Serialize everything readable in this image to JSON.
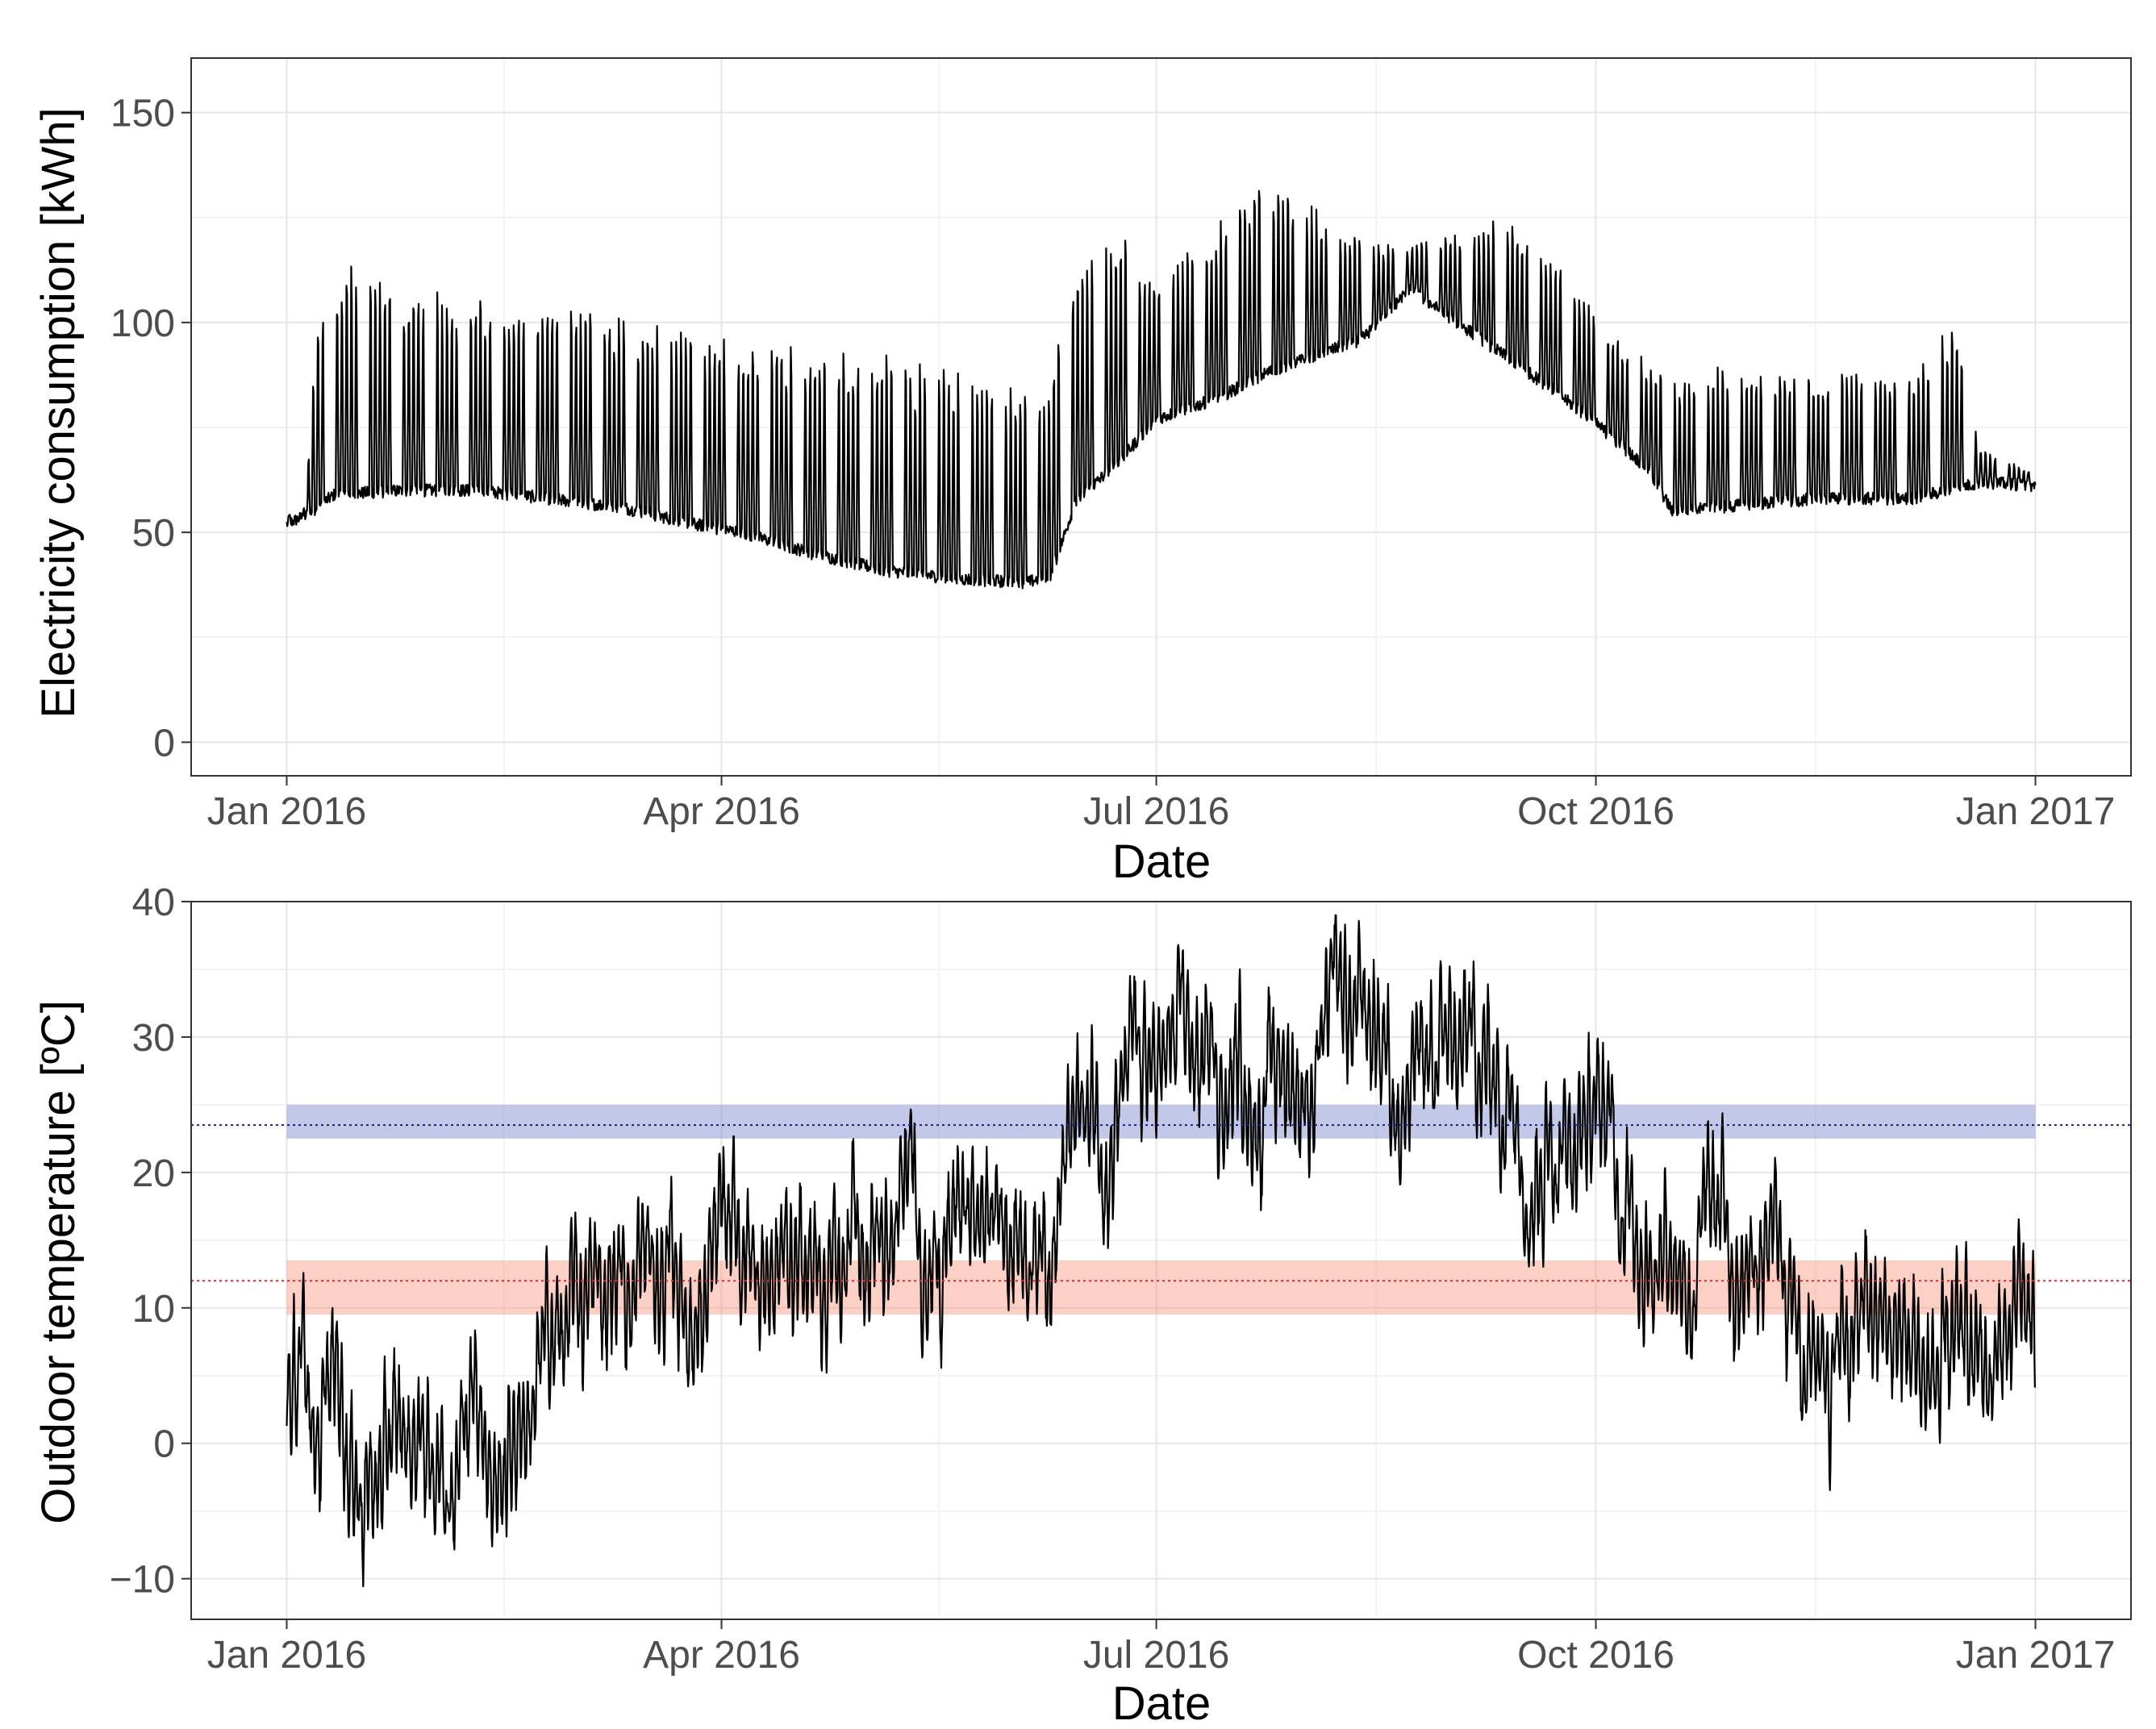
{
  "chart_data": [
    {
      "type": "line",
      "title": "",
      "xlabel": "Date",
      "ylabel": "Electricity consumption [kWh]",
      "ylim": [
        -8,
        163
      ],
      "yticks": [
        0,
        50,
        100,
        150
      ],
      "ytick_labels": [
        "0",
        "50",
        "100",
        "150"
      ],
      "xlim_days": [
        -20,
        386
      ],
      "xticks_days": [
        0,
        91,
        182,
        274,
        366
      ],
      "xtick_labels": [
        "Jan 2016",
        "Apr 2016",
        "Jul 2016",
        "Oct 2016",
        "Jan 2017"
      ],
      "grid": true,
      "line_color": "#000000",
      "description_of_series": "hourly electricity consumption, Jan 2016 - Jan 2017",
      "base_kwh": [
        [
          0,
          52
        ],
        [
          4,
          54
        ],
        [
          10,
          59
        ],
        [
          25,
          60
        ],
        [
          40,
          60
        ],
        [
          55,
          58
        ],
        [
          70,
          56
        ],
        [
          85,
          52
        ],
        [
          95,
          50
        ],
        [
          110,
          45
        ],
        [
          125,
          41
        ],
        [
          140,
          39
        ],
        [
          155,
          38
        ],
        [
          160,
          40
        ],
        [
          165,
          57
        ],
        [
          175,
          68
        ],
        [
          182,
          77
        ],
        [
          195,
          82
        ],
        [
          205,
          88
        ],
        [
          215,
          92
        ],
        [
          225,
          96
        ],
        [
          235,
          108
        ],
        [
          245,
          100
        ],
        [
          255,
          92
        ],
        [
          265,
          84
        ],
        [
          275,
          75
        ],
        [
          285,
          65
        ],
        [
          290,
          55
        ],
        [
          300,
          56
        ],
        [
          320,
          58
        ],
        [
          340,
          58
        ],
        [
          355,
          62
        ],
        [
          366,
          61
        ]
      ],
      "peak_kwh": [
        [
          0,
          54
        ],
        [
          4,
          56
        ],
        [
          6,
          98
        ],
        [
          12,
          112
        ],
        [
          25,
          106
        ],
        [
          40,
          104
        ],
        [
          55,
          102
        ],
        [
          70,
          100
        ],
        [
          85,
          96
        ],
        [
          95,
          94
        ],
        [
          110,
          92
        ],
        [
          125,
          90
        ],
        [
          140,
          86
        ],
        [
          160,
          82
        ],
        [
          163,
          112
        ],
        [
          175,
          118
        ],
        [
          182,
          110
        ],
        [
          195,
          122
        ],
        [
          205,
          132
        ],
        [
          215,
          126
        ],
        [
          225,
          118
        ],
        [
          235,
          118
        ],
        [
          245,
          120
        ],
        [
          255,
          124
        ],
        [
          265,
          116
        ],
        [
          275,
          100
        ],
        [
          285,
          90
        ],
        [
          290,
          86
        ],
        [
          300,
          88
        ],
        [
          320,
          86
        ],
        [
          340,
          88
        ],
        [
          350,
          100
        ],
        [
          354,
          70
        ],
        [
          366,
          64
        ]
      ]
    },
    {
      "type": "line",
      "title": "",
      "xlabel": "Date",
      "ylabel": "Outdoor temperature [ºC]",
      "ylim": [
        -13,
        40
      ],
      "yticks": [
        -10,
        0,
        10,
        20,
        30,
        40
      ],
      "ytick_labels": [
        "−10",
        "0",
        "10",
        "20",
        "30",
        "40"
      ],
      "xlim_days": [
        -20,
        386
      ],
      "xticks_days": [
        0,
        91,
        182,
        274,
        366
      ],
      "xtick_labels": [
        "Jan 2016",
        "Apr 2016",
        "Jul 2016",
        "Oct 2016",
        "Jan 2017"
      ],
      "grid": true,
      "line_color": "#000000",
      "description_of_series": "hourly outdoor temperature, Jan 2016 - Jan 2017",
      "temperature_trend": [
        [
          0,
          4
        ],
        [
          10,
          3
        ],
        [
          20,
          -2
        ],
        [
          30,
          1
        ],
        [
          40,
          5
        ],
        [
          45,
          -1
        ],
        [
          50,
          4
        ],
        [
          60,
          8
        ],
        [
          70,
          13
        ],
        [
          80,
          12
        ],
        [
          90,
          11
        ],
        [
          100,
          14
        ],
        [
          110,
          14
        ],
        [
          120,
          15
        ],
        [
          140,
          16
        ],
        [
          150,
          17
        ],
        [
          160,
          20
        ],
        [
          170,
          25
        ],
        [
          180,
          25
        ],
        [
          190,
          27
        ],
        [
          200,
          28
        ],
        [
          210,
          29
        ],
        [
          220,
          29
        ],
        [
          230,
          31
        ],
        [
          240,
          27
        ],
        [
          250,
          27
        ],
        [
          260,
          28
        ],
        [
          270,
          25
        ],
        [
          280,
          21
        ],
        [
          290,
          17
        ],
        [
          300,
          15
        ],
        [
          310,
          13
        ],
        [
          320,
          10
        ],
        [
          330,
          8
        ],
        [
          340,
          6
        ],
        [
          350,
          2
        ],
        [
          360,
          7
        ],
        [
          366,
          6
        ]
      ],
      "bands": [
        {
          "name": "cooling band",
          "ymin": 22.5,
          "ymax": 25.0,
          "fill": "#7986cb",
          "opacity": 0.45,
          "x_from": 0,
          "x_to": 366
        },
        {
          "name": "heating band",
          "ymin": 9.5,
          "ymax": 13.5,
          "fill": "#f78a6b",
          "opacity": 0.4,
          "x_from": 0,
          "x_to": 366
        }
      ],
      "reference_lines": [
        {
          "name": "cooling threshold",
          "y": 23.5,
          "color": "#1a237e",
          "style": "dotted"
        },
        {
          "name": "heating threshold",
          "y": 12.0,
          "color": "#d32f2f",
          "style": "dotted"
        }
      ]
    }
  ]
}
